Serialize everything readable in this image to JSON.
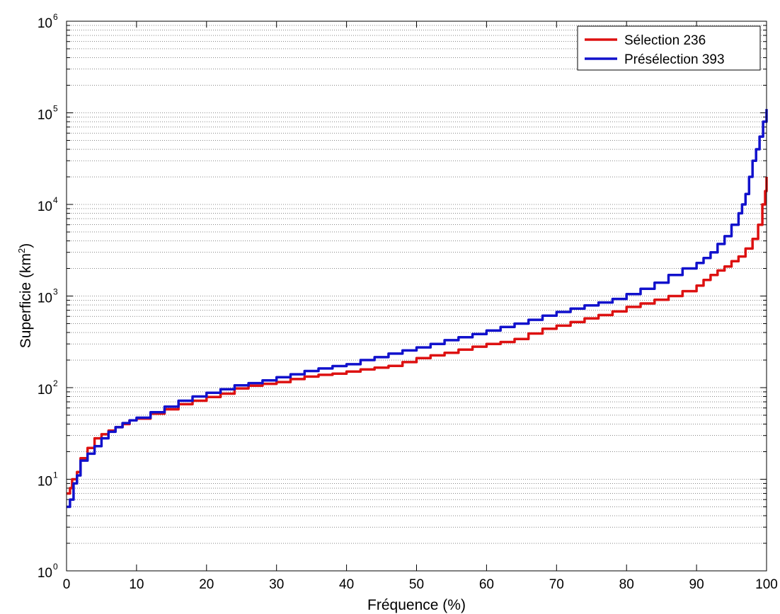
{
  "chart_data": {
    "type": "line",
    "xlabel": "Fréquence (%)",
    "ylabel": "Superficie (km",
    "ylabel_sup": "2",
    "ylabel_close": ")",
    "xlim": [
      0,
      100
    ],
    "ylim": [
      1,
      1000000
    ],
    "yscale": "log",
    "grid": "y-major-and-minor-dotted",
    "legend_position": "top-right",
    "x_ticks": [
      0,
      10,
      20,
      30,
      40,
      50,
      60,
      70,
      80,
      90,
      100
    ],
    "x_tick_labels": [
      "0",
      "10",
      "20",
      "30",
      "40",
      "50",
      "60",
      "70",
      "80",
      "90",
      "100"
    ],
    "y_ticks": [
      1,
      10,
      100,
      1000,
      10000,
      100000,
      1000000
    ],
    "y_tick_base": "10",
    "y_tick_exponents": [
      "0",
      "1",
      "2",
      "3",
      "4",
      "5",
      "6"
    ],
    "series": [
      {
        "name": "Sélection 236",
        "color": "#dd1111",
        "points": [
          [
            0,
            7
          ],
          [
            0.5,
            8
          ],
          [
            0.8,
            10
          ],
          [
            1.5,
            12
          ],
          [
            2,
            17
          ],
          [
            3,
            22
          ],
          [
            4,
            28
          ],
          [
            5,
            31
          ],
          [
            6,
            34
          ],
          [
            7,
            37
          ],
          [
            8,
            40
          ],
          [
            9,
            44
          ],
          [
            10,
            46
          ],
          [
            12,
            52
          ],
          [
            14,
            58
          ],
          [
            16,
            66
          ],
          [
            18,
            72
          ],
          [
            20,
            79
          ],
          [
            22,
            86
          ],
          [
            24,
            98
          ],
          [
            26,
            105
          ],
          [
            28,
            110
          ],
          [
            30,
            115
          ],
          [
            32,
            124
          ],
          [
            34,
            132
          ],
          [
            36,
            138
          ],
          [
            38,
            142
          ],
          [
            40,
            150
          ],
          [
            42,
            158
          ],
          [
            44,
            165
          ],
          [
            46,
            173
          ],
          [
            48,
            190
          ],
          [
            50,
            210
          ],
          [
            52,
            225
          ],
          [
            54,
            240
          ],
          [
            56,
            260
          ],
          [
            58,
            280
          ],
          [
            60,
            300
          ],
          [
            62,
            315
          ],
          [
            64,
            340
          ],
          [
            66,
            390
          ],
          [
            68,
            440
          ],
          [
            70,
            475
          ],
          [
            72,
            520
          ],
          [
            74,
            570
          ],
          [
            76,
            620
          ],
          [
            78,
            680
          ],
          [
            80,
            760
          ],
          [
            82,
            830
          ],
          [
            84,
            910
          ],
          [
            86,
            1000
          ],
          [
            88,
            1130
          ],
          [
            90,
            1300
          ],
          [
            91,
            1500
          ],
          [
            92,
            1700
          ],
          [
            93,
            1900
          ],
          [
            94,
            2100
          ],
          [
            95,
            2400
          ],
          [
            96,
            2700
          ],
          [
            97,
            3300
          ],
          [
            98,
            4200
          ],
          [
            98.8,
            6000
          ],
          [
            99.4,
            10000
          ],
          [
            99.8,
            14000
          ],
          [
            100,
            20000
          ]
        ]
      },
      {
        "name": "Présélection 393",
        "color": "#1111cc",
        "points": [
          [
            0,
            5
          ],
          [
            0.5,
            6
          ],
          [
            1,
            9
          ],
          [
            1.5,
            11
          ],
          [
            2,
            16
          ],
          [
            3,
            19
          ],
          [
            4,
            23
          ],
          [
            5,
            28
          ],
          [
            6,
            33
          ],
          [
            7,
            37
          ],
          [
            8,
            41
          ],
          [
            9,
            44
          ],
          [
            10,
            47
          ],
          [
            12,
            54
          ],
          [
            14,
            62
          ],
          [
            16,
            72
          ],
          [
            18,
            80
          ],
          [
            20,
            88
          ],
          [
            22,
            96
          ],
          [
            24,
            106
          ],
          [
            26,
            112
          ],
          [
            28,
            120
          ],
          [
            30,
            130
          ],
          [
            32,
            140
          ],
          [
            34,
            152
          ],
          [
            36,
            162
          ],
          [
            38,
            172
          ],
          [
            40,
            180
          ],
          [
            42,
            200
          ],
          [
            44,
            215
          ],
          [
            46,
            235
          ],
          [
            48,
            255
          ],
          [
            50,
            275
          ],
          [
            52,
            300
          ],
          [
            54,
            330
          ],
          [
            56,
            355
          ],
          [
            58,
            385
          ],
          [
            60,
            420
          ],
          [
            62,
            460
          ],
          [
            64,
            500
          ],
          [
            66,
            550
          ],
          [
            68,
            610
          ],
          [
            70,
            670
          ],
          [
            72,
            730
          ],
          [
            74,
            790
          ],
          [
            76,
            850
          ],
          [
            78,
            930
          ],
          [
            80,
            1050
          ],
          [
            82,
            1200
          ],
          [
            84,
            1400
          ],
          [
            86,
            1700
          ],
          [
            88,
            2000
          ],
          [
            90,
            2300
          ],
          [
            91,
            2600
          ],
          [
            92,
            3000
          ],
          [
            93,
            3700
          ],
          [
            94,
            4500
          ],
          [
            95,
            6000
          ],
          [
            96,
            8000
          ],
          [
            96.5,
            10000
          ],
          [
            97,
            13000
          ],
          [
            97.5,
            20000
          ],
          [
            98,
            30000
          ],
          [
            98.5,
            40000
          ],
          [
            99,
            55000
          ],
          [
            99.5,
            80000
          ],
          [
            100,
            110000
          ]
        ]
      }
    ]
  }
}
